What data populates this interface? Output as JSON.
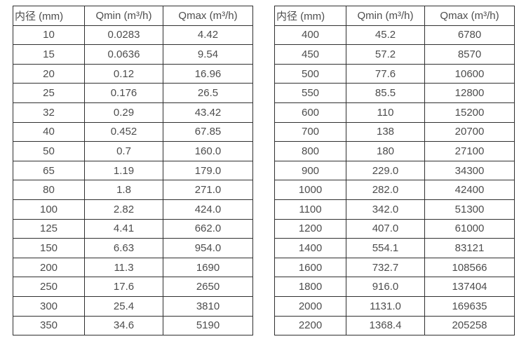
{
  "page": {
    "background": "#ffffff",
    "border_color": "#303030",
    "text_color": "#4d4d4d"
  },
  "tables": [
    {
      "name": "flow-range-table-small-diameters",
      "headers": [
        "内径 (mm)",
        "Qmin (m³/h)",
        "Qmax (m³/h)"
      ],
      "rows": [
        [
          "10",
          "0.0283",
          "4.42"
        ],
        [
          "15",
          "0.0636",
          "9.54"
        ],
        [
          "20",
          "0.12",
          "16.96"
        ],
        [
          "25",
          "0.176",
          "26.5"
        ],
        [
          "32",
          "0.29",
          "43.42"
        ],
        [
          "40",
          "0.452",
          "67.85"
        ],
        [
          "50",
          "0.7",
          "160.0"
        ],
        [
          "65",
          "1.19",
          "179.0"
        ],
        [
          "80",
          "1.8",
          "271.0"
        ],
        [
          "100",
          "2.82",
          "424.0"
        ],
        [
          "125",
          "4.41",
          "662.0"
        ],
        [
          "150",
          "6.63",
          "954.0"
        ],
        [
          "200",
          "11.3",
          "1690"
        ],
        [
          "250",
          "17.6",
          "2650"
        ],
        [
          "300",
          "25.4",
          "3810"
        ],
        [
          "350",
          "34.6",
          "5190"
        ]
      ]
    },
    {
      "name": "flow-range-table-large-diameters",
      "headers": [
        "内径 (mm)",
        "Qmin (m³/h)",
        "Qmax (m³/h)"
      ],
      "rows": [
        [
          "400",
          "45.2",
          "6780"
        ],
        [
          "450",
          "57.2",
          "8570"
        ],
        [
          "500",
          "77.6",
          "10600"
        ],
        [
          "550",
          "85.5",
          "12800"
        ],
        [
          "600",
          "110",
          "15200"
        ],
        [
          "700",
          "138",
          "20700"
        ],
        [
          "800",
          "180",
          "27100"
        ],
        [
          "900",
          "229.0",
          "34300"
        ],
        [
          "1000",
          "282.0",
          "42400"
        ],
        [
          "1100",
          "342.0",
          "51300"
        ],
        [
          "1200",
          "407.0",
          "61000"
        ],
        [
          "1400",
          "554.1",
          "83121"
        ],
        [
          "1600",
          "732.7",
          "108566"
        ],
        [
          "1800",
          "916.0",
          "137404"
        ],
        [
          "2000",
          "1131.0",
          "169635"
        ],
        [
          "2200",
          "1368.4",
          "205258"
        ]
      ]
    }
  ]
}
